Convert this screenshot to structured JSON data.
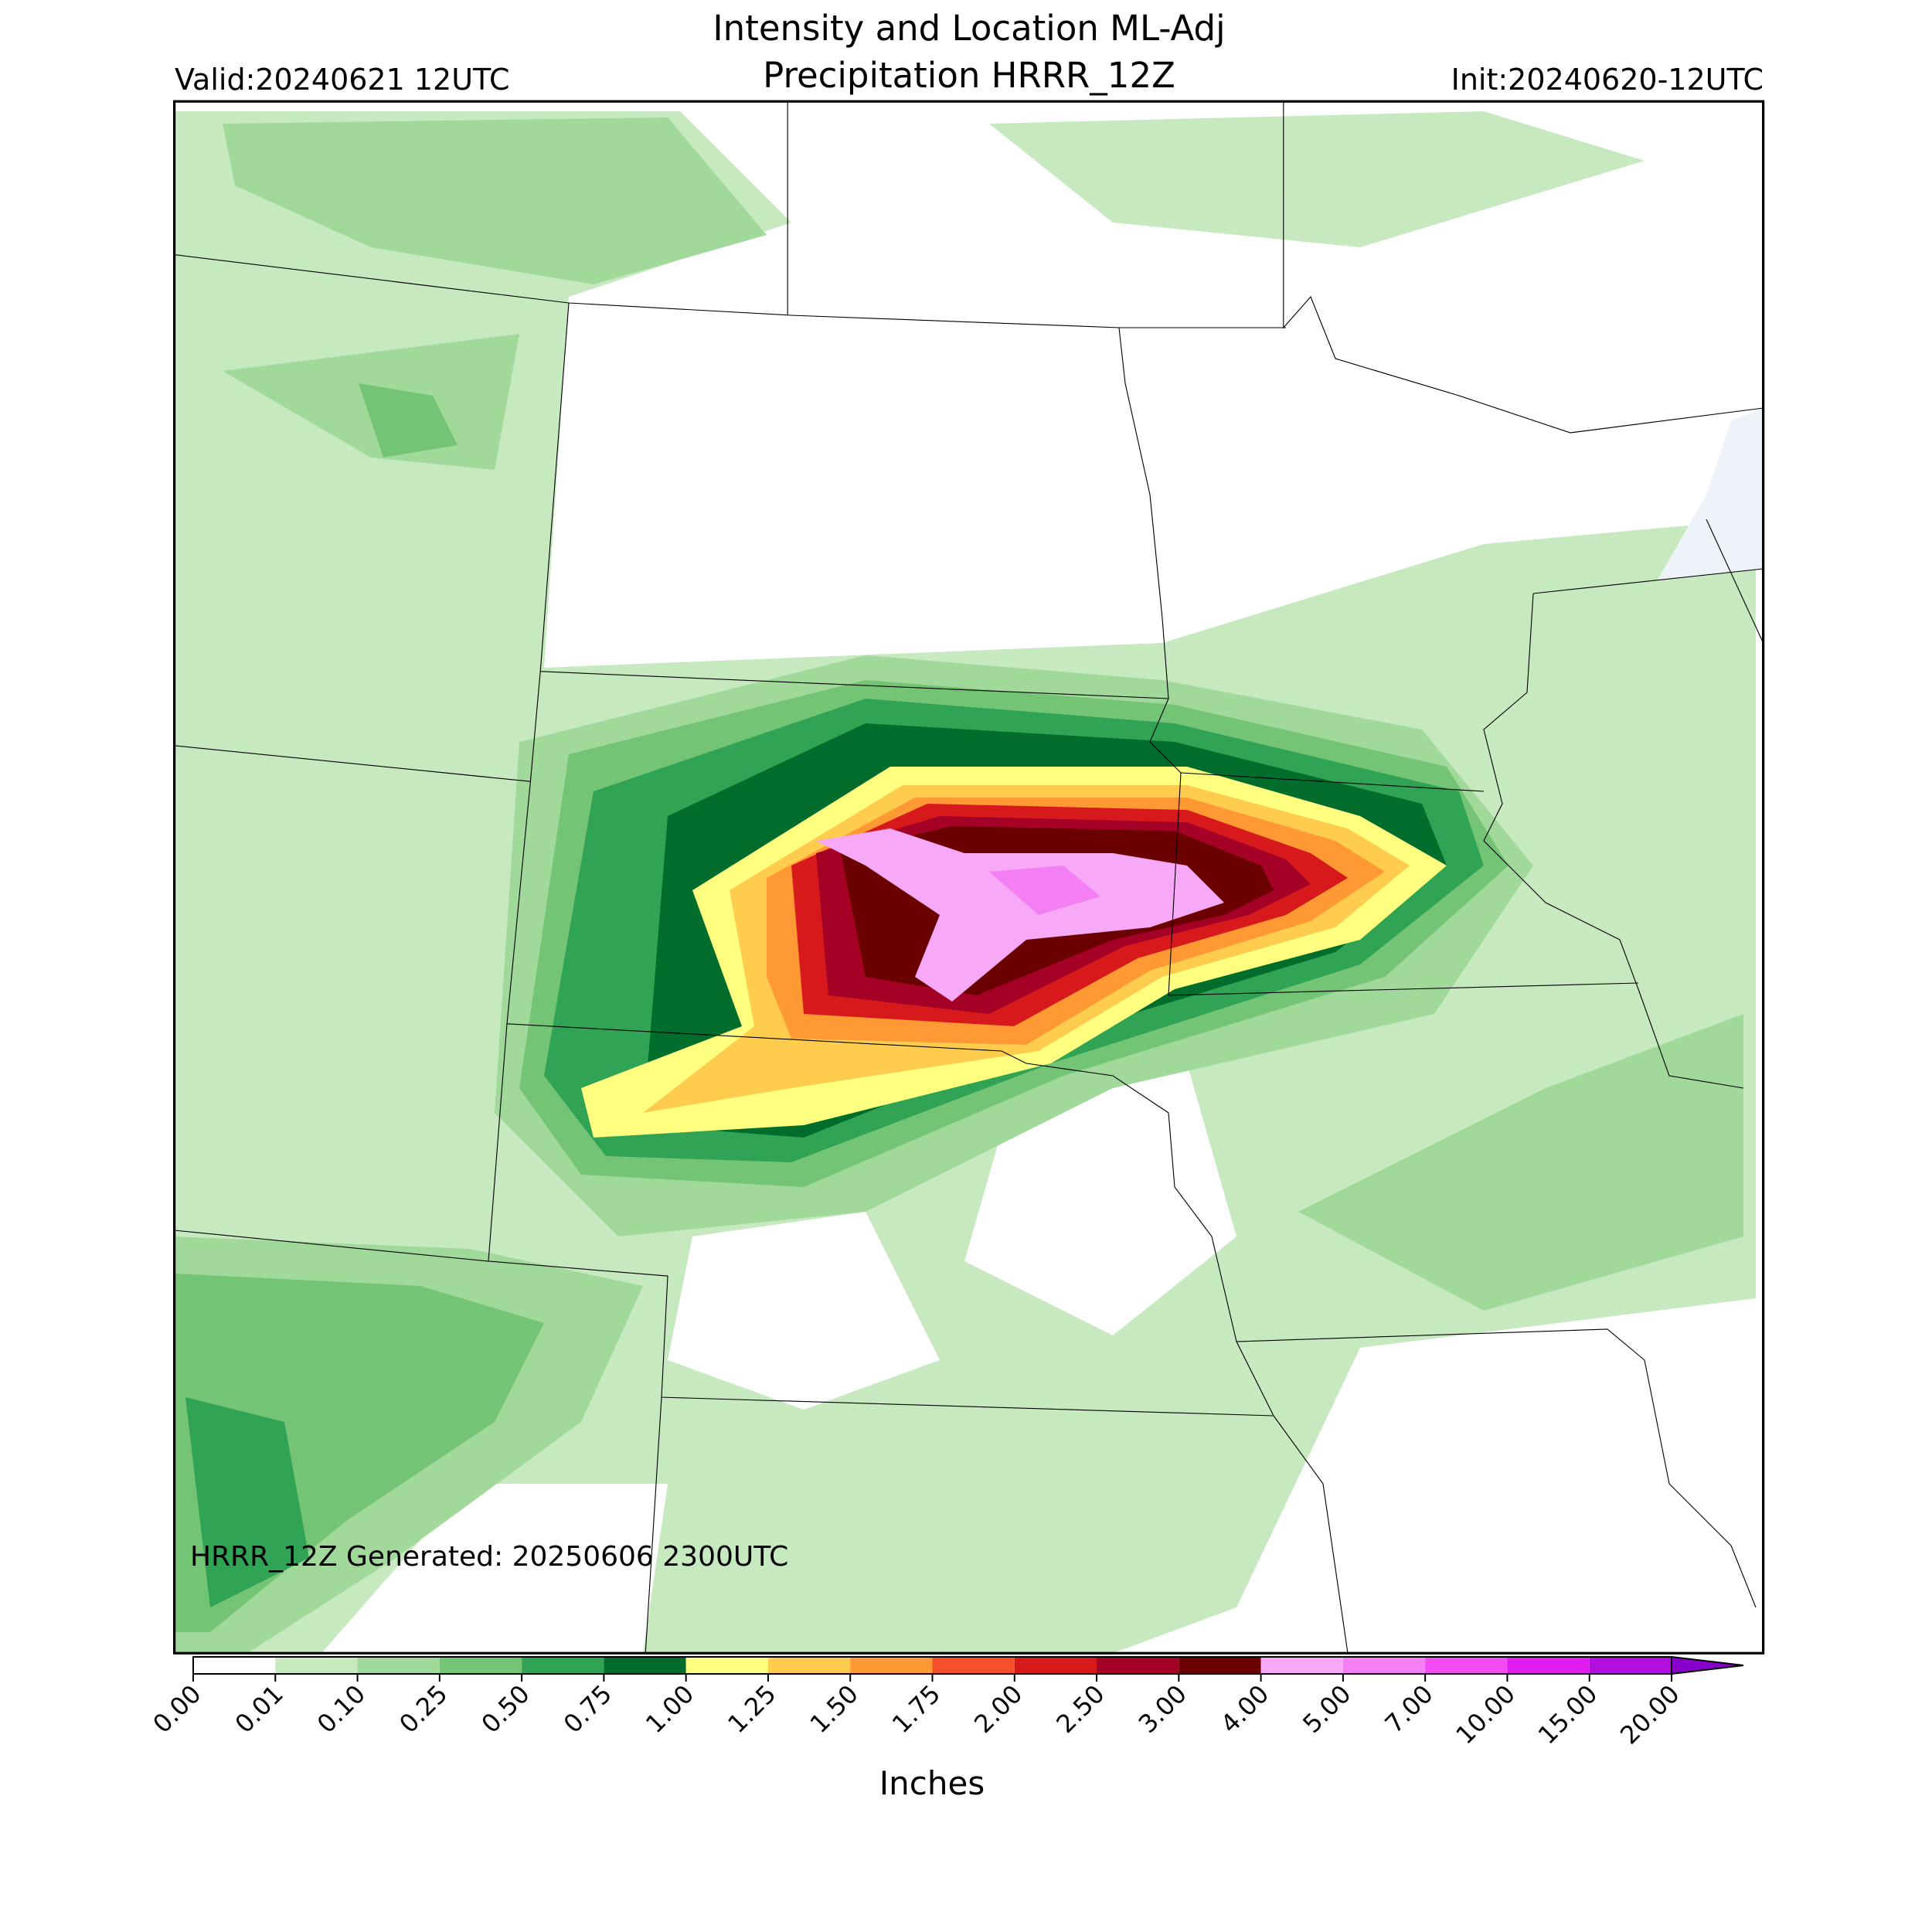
{
  "title_lines": [
    "Intensity and Location ML-Adj",
    "Precipitation HRRR_12Z"
  ],
  "valid": "Valid:20240621 12UTC",
  "init": "Init:20240620-12UTC",
  "footer": "HRRR_12Z Generated: 20250606 2300UTC",
  "colorbar": {
    "label": "Inches",
    "ticks": [
      {
        "value": 0,
        "label": "0.00"
      },
      {
        "value": 0.01,
        "label": "0.01"
      },
      {
        "value": 0.1,
        "label": "0.10"
      },
      {
        "value": 0.25,
        "label": "0.25"
      },
      {
        "value": 0.5,
        "label": "0.50"
      },
      {
        "value": 0.75,
        "label": "0.75"
      },
      {
        "value": 1,
        "label": "1.00"
      },
      {
        "value": 1.25,
        "label": "1.25"
      },
      {
        "value": 1.5,
        "label": "1.50"
      },
      {
        "value": 1.75,
        "label": "1.75"
      },
      {
        "value": 2,
        "label": "2.00"
      },
      {
        "value": 2.5,
        "label": "2.50"
      },
      {
        "value": 3,
        "label": "3.00"
      },
      {
        "value": 4,
        "label": "4.00"
      },
      {
        "value": 5,
        "label": "5.00"
      },
      {
        "value": 7,
        "label": "7.00"
      },
      {
        "value": 10,
        "label": "10.00"
      },
      {
        "value": 15,
        "label": "15.00"
      },
      {
        "value": 20,
        "label": "20.00"
      }
    ],
    "colors": [
      "#ffffff",
      "#c7e9c0",
      "#a1d99b",
      "#74c476",
      "#31a354",
      "#006d2c",
      "#ffff80",
      "#ffcc4d",
      "#ff9933",
      "#f5502a",
      "#d7191c",
      "#a50026",
      "#6b0000",
      "#f7a8f7",
      "#f47ef4",
      "#f04cf0",
      "#e01cf0",
      "#b20ee0"
    ],
    "extend_color": "#8800cc"
  }
}
